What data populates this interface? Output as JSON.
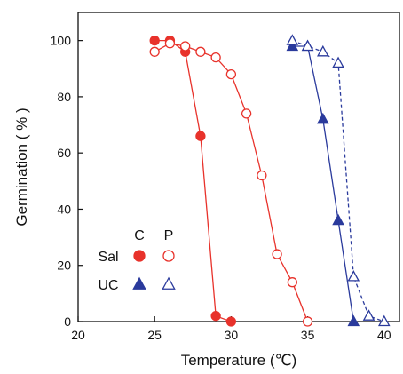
{
  "chart_data": {
    "type": "line",
    "xlabel": "Temperature (℃)",
    "ylabel": "Germination ( % )",
    "xlim": [
      20,
      41
    ],
    "ylim": [
      0,
      110
    ],
    "xticks": [
      20,
      25,
      30,
      35,
      40
    ],
    "yticks": [
      0,
      20,
      40,
      60,
      80,
      100
    ],
    "grid": false,
    "legend": {
      "placement": "lower-left",
      "column_headers": [
        "C",
        "P"
      ],
      "row_labels": [
        "Sal",
        "UC"
      ]
    },
    "series": [
      {
        "name": "Sal C",
        "color": "#e8322b",
        "marker": "circle",
        "filled": true,
        "line_style": "solid",
        "x": [
          25,
          26,
          27,
          28,
          29,
          30
        ],
        "y": [
          100,
          100,
          96,
          66,
          2,
          0
        ]
      },
      {
        "name": "Sal P",
        "color": "#e8322b",
        "marker": "circle",
        "filled": false,
        "line_style": "solid",
        "x": [
          25,
          26,
          27,
          28,
          29,
          30,
          31,
          32,
          33,
          34,
          35
        ],
        "y": [
          96,
          99,
          98,
          96,
          94,
          88,
          74,
          52,
          24,
          14,
          0
        ]
      },
      {
        "name": "UC C",
        "color": "#2a3a9c",
        "marker": "triangle",
        "filled": true,
        "line_style": "solid",
        "x": [
          34,
          35,
          36,
          37,
          38
        ],
        "y": [
          98,
          98,
          72,
          36,
          0
        ]
      },
      {
        "name": "UC P",
        "color": "#2a3a9c",
        "marker": "triangle",
        "filled": false,
        "line_style": "dashed",
        "x": [
          34,
          35,
          36,
          37,
          38,
          39,
          40
        ],
        "y": [
          100,
          98,
          96,
          92,
          16,
          2,
          0
        ]
      }
    ]
  }
}
